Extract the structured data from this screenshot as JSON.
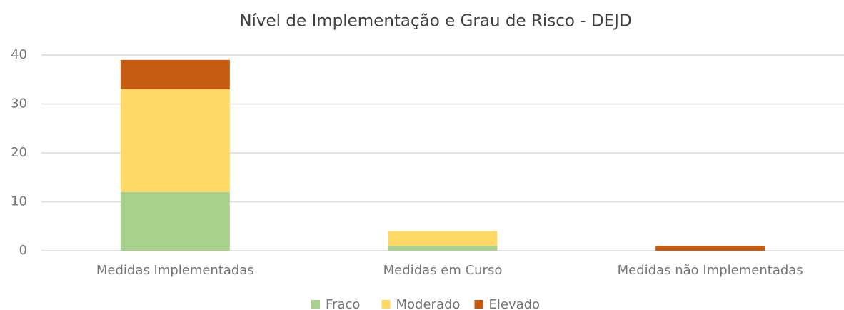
{
  "chart_data": {
    "type": "bar",
    "stacked": true,
    "title": "Nível de Implementação e Grau de Risco - DEJD",
    "categories": [
      "Medidas Implementadas",
      "Medidas em Curso",
      "Medidas não Implementadas"
    ],
    "series": [
      {
        "name": "Fraco",
        "color": "#a9d18e",
        "values": [
          12,
          1,
          0
        ]
      },
      {
        "name": "Moderado",
        "color": "#ffd966",
        "values": [
          21,
          3,
          0
        ]
      },
      {
        "name": "Elevado",
        "color": "#c55a11",
        "values": [
          6,
          0,
          1
        ]
      }
    ],
    "ylim": [
      0,
      40
    ],
    "yticks": [
      0,
      10,
      20,
      30,
      40
    ],
    "grid": true,
    "legend": "bottom"
  }
}
